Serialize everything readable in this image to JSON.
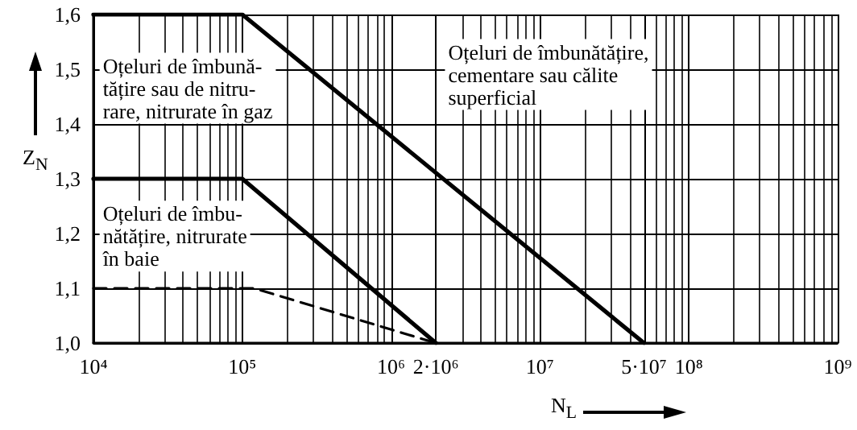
{
  "chart_data": {
    "type": "line",
    "xlabel": "N$_{L}$",
    "ylabel": "Z$_{N}$",
    "log": "x",
    "grid": true,
    "line_style": "solid",
    "marker": "none",
    "xlim": [
      10000,
      1000000000
    ],
    "ylim": [
      1.0,
      1.6
    ],
    "xticks": [
      {
        "value": 10000,
        "label": "10⁴"
      },
      {
        "value": 100000,
        "label": "10⁵"
      },
      {
        "value": 1000000,
        "label": "10⁶"
      },
      {
        "value": 2000000,
        "label": "2·10⁶"
      },
      {
        "value": 10000000,
        "label": "10⁷"
      },
      {
        "value": 50000000,
        "label": "5·10⁷"
      },
      {
        "value": 100000000,
        "label": "10⁸"
      },
      {
        "value": 1000000000,
        "label": "10⁹"
      }
    ],
    "yticks": [
      {
        "value": 1.0,
        "label": "1,0"
      },
      {
        "value": 1.1,
        "label": "1,1"
      },
      {
        "value": 1.2,
        "label": "1,2"
      },
      {
        "value": 1.3,
        "label": "1,3"
      },
      {
        "value": 1.4,
        "label": "1,4"
      },
      {
        "value": 1.5,
        "label": "1,5"
      },
      {
        "value": 1.6,
        "label": "1,6"
      }
    ],
    "series": [
      {
        "color": "#000000",
        "x": [
          10000,
          100000,
          50000000
        ],
        "values": [
          1.6,
          1.6,
          1.0
        ]
      },
      {
        "color": "#000000",
        "x": [
          10000,
          100000,
          2000000
        ],
        "values": [
          1.3,
          1.3,
          1.0
        ]
      },
      {
        "color": "#000000",
        "line_style": "dashed",
        "x": [
          10000,
          120000,
          2000000
        ],
        "values": [
          1.1,
          1.1,
          1.0
        ]
      }
    ],
    "annotations": [
      "Oțeluri de îmbună-\ntățire sau de nitru-\nrare, nitrurate în gaz",
      "Oțeluri de îmbunătățire,\ncementare sau călite\nsuperficial",
      "Oțeluri de îmbu-\nnătățire, nitrurate\nîn baie"
    ]
  }
}
